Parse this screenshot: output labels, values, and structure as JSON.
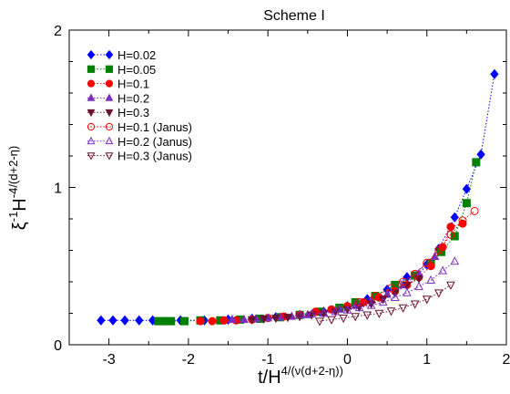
{
  "chart_data": {
    "type": "scatter",
    "title": "Scheme I",
    "xlabel": {
      "base": "t/H",
      "sup": "4/(ν(d+2-η))"
    },
    "ylabel": {
      "pre": "ξ",
      "pre_sup": "-1",
      "mid": "H",
      "sup": "-4/(d+2-η)"
    },
    "xlim": [
      -3.5,
      2.0
    ],
    "ylim": [
      0,
      2
    ],
    "xticks": [
      -3,
      -2,
      -1,
      0,
      1,
      2
    ],
    "xtick_labels": [
      "-3",
      "-2",
      "-1",
      "0",
      "1",
      "2"
    ],
    "yticks": [
      0,
      1,
      2
    ],
    "ytick_labels": [
      "0",
      "1",
      "2"
    ],
    "grid": false,
    "legend_position": "top-left",
    "series": [
      {
        "name": "H=0.02",
        "color": "#0000ff",
        "marker": "diamond",
        "filled": true,
        "line": true,
        "x": [
          -3.1,
          -2.95,
          -2.8,
          -2.62,
          -2.45,
          -2.1,
          -1.8,
          -1.5,
          -1.2,
          -0.9,
          -0.6,
          -0.3,
          0.0,
          0.25,
          0.5,
          0.75,
          1.0,
          1.15,
          1.35,
          1.5,
          1.68,
          1.85
        ],
        "y": [
          0.155,
          0.155,
          0.155,
          0.155,
          0.155,
          0.155,
          0.155,
          0.16,
          0.165,
          0.175,
          0.19,
          0.21,
          0.245,
          0.29,
          0.35,
          0.43,
          0.51,
          0.61,
          0.81,
          0.99,
          1.21,
          1.72
        ]
      },
      {
        "name": "H=0.05",
        "color": "#008000",
        "marker": "square",
        "filled": true,
        "line": true,
        "x": [
          -2.38,
          -2.3,
          -2.22,
          -2.05,
          -1.85,
          -1.6,
          -1.35,
          -1.1,
          -0.85,
          -0.6,
          -0.35,
          -0.1,
          0.1,
          0.35,
          0.6,
          0.85,
          1.05,
          1.18,
          1.35,
          1.5,
          1.62
        ],
        "y": [
          0.15,
          0.15,
          0.15,
          0.15,
          0.155,
          0.155,
          0.16,
          0.165,
          0.175,
          0.19,
          0.21,
          0.235,
          0.27,
          0.31,
          0.38,
          0.44,
          0.52,
          0.59,
          0.69,
          0.9,
          1.16
        ]
      },
      {
        "name": "H=0.1",
        "color": "#ff0000",
        "marker": "circle",
        "filled": true,
        "line": true,
        "x": [
          -1.85,
          -1.7,
          -1.55,
          -1.4,
          -1.2,
          -1.0,
          -0.8,
          -0.6,
          -0.4,
          -0.2,
          0.0,
          0.2,
          0.4,
          0.6,
          0.75,
          0.9,
          1.05,
          1.2,
          1.3,
          1.45
        ],
        "y": [
          0.15,
          0.15,
          0.155,
          0.155,
          0.16,
          0.17,
          0.18,
          0.19,
          0.21,
          0.225,
          0.245,
          0.27,
          0.3,
          0.34,
          0.38,
          0.43,
          0.5,
          0.62,
          0.75,
          0.77
        ]
      },
      {
        "name": "H=0.2",
        "color": "#7b2fbf",
        "marker": "triangle-up",
        "filled": true,
        "line": true,
        "x": [
          -1.45,
          -1.3,
          -1.15,
          -1.0,
          -0.85,
          -0.7,
          -0.5,
          -0.3,
          -0.1,
          0.1,
          0.3,
          0.5,
          0.7,
          0.9,
          1.1
        ],
        "y": [
          0.16,
          0.16,
          0.165,
          0.17,
          0.175,
          0.18,
          0.19,
          0.205,
          0.225,
          0.25,
          0.28,
          0.32,
          0.38,
          0.45,
          0.56
        ]
      },
      {
        "name": "H=0.3",
        "color": "#6b1030",
        "marker": "triangle-down",
        "filled": true,
        "line": true,
        "x": [
          -1.2,
          -1.05,
          -0.9,
          -0.75,
          -0.6,
          -0.45,
          -0.3,
          -0.15,
          0.0,
          0.15,
          0.3,
          0.45,
          0.6,
          0.75,
          0.9
        ],
        "y": [
          0.16,
          0.165,
          0.17,
          0.175,
          0.18,
          0.19,
          0.2,
          0.21,
          0.225,
          0.24,
          0.26,
          0.29,
          0.33,
          0.38,
          0.42
        ]
      },
      {
        "name": "H=0.1 (Janus)",
        "color": "#ff0000",
        "marker": "circle",
        "filled": false,
        "line": true,
        "x": [
          0.15,
          0.35,
          0.55,
          0.7,
          0.85,
          1.0,
          1.15,
          1.3,
          1.45,
          1.6
        ],
        "y": [
          0.27,
          0.31,
          0.36,
          0.4,
          0.45,
          0.52,
          0.6,
          0.7,
          0.79,
          0.85
        ]
      },
      {
        "name": "H=0.2 (Janus)",
        "color": "#7b2fbf",
        "marker": "triangle-up",
        "filled": false,
        "line": true,
        "x": [
          -0.6,
          -0.45,
          -0.3,
          -0.15,
          0.0,
          0.15,
          0.3,
          0.45,
          0.6,
          0.75,
          0.9,
          1.05,
          1.2,
          1.35
        ],
        "y": [
          0.19,
          0.195,
          0.2,
          0.21,
          0.22,
          0.235,
          0.25,
          0.27,
          0.3,
          0.33,
          0.37,
          0.41,
          0.47,
          0.53
        ]
      },
      {
        "name": "H=0.3 (Janus)",
        "color": "#6b1030",
        "marker": "triangle-down",
        "filled": false,
        "line": true,
        "x": [
          -0.35,
          -0.2,
          -0.05,
          0.1,
          0.25,
          0.4,
          0.55,
          0.7,
          0.85,
          1.0,
          1.15,
          1.3
        ],
        "y": [
          0.15,
          0.16,
          0.17,
          0.18,
          0.19,
          0.2,
          0.215,
          0.235,
          0.26,
          0.29,
          0.33,
          0.38
        ]
      }
    ]
  }
}
